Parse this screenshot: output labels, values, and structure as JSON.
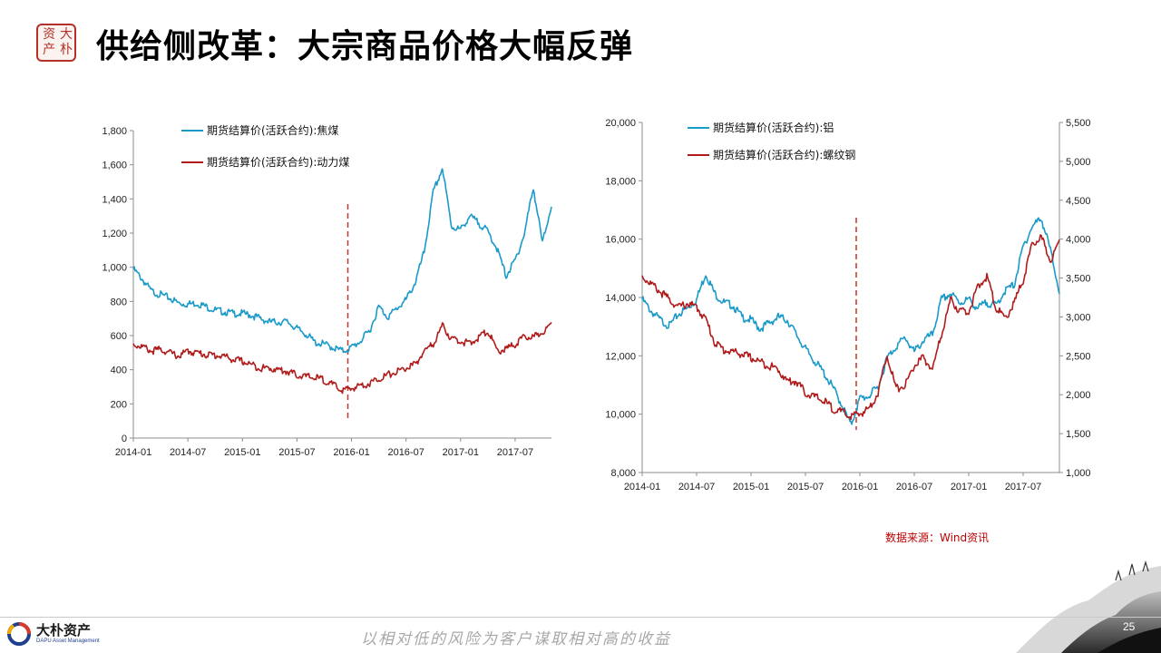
{
  "slide": {
    "title": "供给侧改革：大宗商品价格大幅反弹",
    "source": "数据来源：Wind资讯",
    "slogan": "以相对低的风险为客户谋取相对高的收益",
    "page_number": "25",
    "logo_name": "大朴资产",
    "logo_en": "DAPU Asset Management",
    "seal_chars": [
      "大",
      "朴",
      "资",
      "产"
    ]
  },
  "colors": {
    "blue": "#1a9ac9",
    "red": "#b01c1c",
    "marker": "#c0392b",
    "axis": "#8c8c8c"
  },
  "chart_data": [
    {
      "type": "line",
      "x_ticks": [
        "2014-01",
        "2014-07",
        "2015-01",
        "2015-07",
        "2016-01",
        "2016-07",
        "2017-01",
        "2017-07"
      ],
      "x_range": [
        "2014-01",
        "2017-11"
      ],
      "y_ticks": [
        "0",
        "200",
        "400",
        "600",
        "800",
        "1,000",
        "1,200",
        "1,400",
        "1,600",
        "1,800"
      ],
      "ylim": [
        0,
        1800
      ],
      "legend_position": "top-left",
      "marker_date": "2016-01",
      "grid": false,
      "series": [
        {
          "name": "期货结算价(活跃合约):焦煤",
          "color": "#1a9ac9",
          "x": [
            "2014-01",
            "2014-02",
            "2014-03",
            "2014-04",
            "2014-05",
            "2014-06",
            "2014-07",
            "2014-08",
            "2014-09",
            "2014-10",
            "2014-11",
            "2014-12",
            "2015-01",
            "2015-02",
            "2015-03",
            "2015-04",
            "2015-05",
            "2015-06",
            "2015-07",
            "2015-08",
            "2015-09",
            "2015-10",
            "2015-11",
            "2015-12",
            "2016-01",
            "2016-02",
            "2016-03",
            "2016-04",
            "2016-05",
            "2016-06",
            "2016-07",
            "2016-08",
            "2016-09",
            "2016-10",
            "2016-11",
            "2016-12",
            "2017-01",
            "2017-02",
            "2017-03",
            "2017-04",
            "2017-05",
            "2017-06",
            "2017-07",
            "2017-08",
            "2017-09",
            "2017-10",
            "2017-11"
          ],
          "values": [
            1000,
            940,
            870,
            850,
            830,
            800,
            795,
            800,
            780,
            760,
            750,
            740,
            740,
            730,
            710,
            690,
            690,
            690,
            650,
            620,
            570,
            560,
            540,
            520,
            540,
            580,
            640,
            780,
            720,
            770,
            820,
            920,
            1100,
            1450,
            1590,
            1250,
            1230,
            1310,
            1270,
            1220,
            1120,
            960,
            1050,
            1200,
            1480,
            1150,
            1380
          ]
        },
        {
          "name": "期货结算价(活跃合约):动力煤",
          "color": "#b01c1c",
          "x": [
            "2014-01",
            "2014-02",
            "2014-03",
            "2014-04",
            "2014-05",
            "2014-06",
            "2014-07",
            "2014-08",
            "2014-09",
            "2014-10",
            "2014-11",
            "2014-12",
            "2015-01",
            "2015-02",
            "2015-03",
            "2015-04",
            "2015-05",
            "2015-06",
            "2015-07",
            "2015-08",
            "2015-09",
            "2015-10",
            "2015-11",
            "2015-12",
            "2016-01",
            "2016-02",
            "2016-03",
            "2016-04",
            "2016-05",
            "2016-06",
            "2016-07",
            "2016-08",
            "2016-09",
            "2016-10",
            "2016-11",
            "2016-12",
            "2017-01",
            "2017-02",
            "2017-03",
            "2017-04",
            "2017-05",
            "2017-06",
            "2017-07",
            "2017-08",
            "2017-09",
            "2017-10",
            "2017-11"
          ],
          "values": [
            560,
            545,
            520,
            530,
            510,
            490,
            520,
            510,
            500,
            495,
            490,
            470,
            460,
            440,
            420,
            420,
            410,
            400,
            380,
            370,
            365,
            350,
            320,
            290,
            300,
            320,
            330,
            360,
            380,
            400,
            420,
            440,
            520,
            560,
            670,
            590,
            580,
            560,
            600,
            640,
            520,
            530,
            560,
            600,
            600,
            630,
            680
          ]
        }
      ]
    },
    {
      "type": "line",
      "x_ticks": [
        "2014-01",
        "2014-07",
        "2015-01",
        "2015-07",
        "2016-01",
        "2016-07",
        "2017-01",
        "2017-07"
      ],
      "x_range": [
        "2014-01",
        "2017-11"
      ],
      "y_ticks": [
        "8,000",
        "10,000",
        "12,000",
        "14,000",
        "16,000",
        "18,000",
        "20,000"
      ],
      "ylim": [
        8000,
        20000
      ],
      "y2_ticks": [
        "1,000",
        "1,500",
        "2,000",
        "2,500",
        "3,000",
        "3,500",
        "4,000",
        "4,500",
        "5,000",
        "5,500"
      ],
      "y2lim": [
        1000,
        5500
      ],
      "legend_position": "top-left",
      "marker_date": "2016-01",
      "grid": false,
      "series": [
        {
          "name": "期货结算价(活跃合约):铝",
          "color": "#1a9ac9",
          "axis": "left",
          "x": [
            "2014-01",
            "2014-02",
            "2014-03",
            "2014-04",
            "2014-05",
            "2014-06",
            "2014-07",
            "2014-08",
            "2014-09",
            "2014-10",
            "2014-11",
            "2014-12",
            "2015-01",
            "2015-02",
            "2015-03",
            "2015-04",
            "2015-05",
            "2015-06",
            "2015-07",
            "2015-08",
            "2015-09",
            "2015-10",
            "2015-11",
            "2015-12",
            "2016-01",
            "2016-02",
            "2016-03",
            "2016-04",
            "2016-05",
            "2016-06",
            "2016-07",
            "2016-08",
            "2016-09",
            "2016-10",
            "2016-11",
            "2016-12",
            "2017-01",
            "2017-02",
            "2017-03",
            "2017-04",
            "2017-05",
            "2017-06",
            "2017-07",
            "2017-08",
            "2017-09",
            "2017-10",
            "2017-11"
          ],
          "values": [
            14000,
            13600,
            13300,
            13100,
            13500,
            13700,
            14000,
            14900,
            14200,
            13900,
            13800,
            13400,
            13300,
            13000,
            13200,
            13400,
            13300,
            12800,
            12300,
            11900,
            11500,
            11000,
            10400,
            9700,
            10600,
            10700,
            11000,
            12000,
            12400,
            12700,
            12200,
            12600,
            12800,
            14000,
            14200,
            13900,
            14000,
            13700,
            13900,
            13800,
            14300,
            14500,
            15800,
            16500,
            16800,
            15700,
            14300
          ]
        },
        {
          "name": "期货结算价(活跃合约):螺纹钢",
          "color": "#b01c1c",
          "axis": "right",
          "x": [
            "2014-01",
            "2014-02",
            "2014-03",
            "2014-04",
            "2014-05",
            "2014-06",
            "2014-07",
            "2014-08",
            "2014-09",
            "2014-10",
            "2014-11",
            "2014-12",
            "2015-01",
            "2015-02",
            "2015-03",
            "2015-04",
            "2015-05",
            "2015-06",
            "2015-07",
            "2015-08",
            "2015-09",
            "2015-10",
            "2015-11",
            "2015-12",
            "2016-01",
            "2016-02",
            "2016-03",
            "2016-04",
            "2016-05",
            "2016-06",
            "2016-07",
            "2016-08",
            "2016-09",
            "2016-10",
            "2016-11",
            "2016-12",
            "2017-01",
            "2017-02",
            "2017-03",
            "2017-04",
            "2017-05",
            "2017-06",
            "2017-07",
            "2017-08",
            "2017-09",
            "2017-10",
            "2017-11"
          ],
          "values": [
            3550,
            3450,
            3350,
            3250,
            3150,
            3200,
            3150,
            3000,
            2700,
            2600,
            2580,
            2550,
            2500,
            2450,
            2400,
            2350,
            2200,
            2200,
            2050,
            2000,
            1950,
            1850,
            1800,
            1750,
            1780,
            1850,
            2050,
            2550,
            2100,
            2150,
            2400,
            2500,
            2350,
            2800,
            3250,
            3100,
            3100,
            3400,
            3550,
            3150,
            3000,
            3200,
            3500,
            3950,
            4050,
            3750,
            4000
          ]
        }
      ]
    }
  ]
}
